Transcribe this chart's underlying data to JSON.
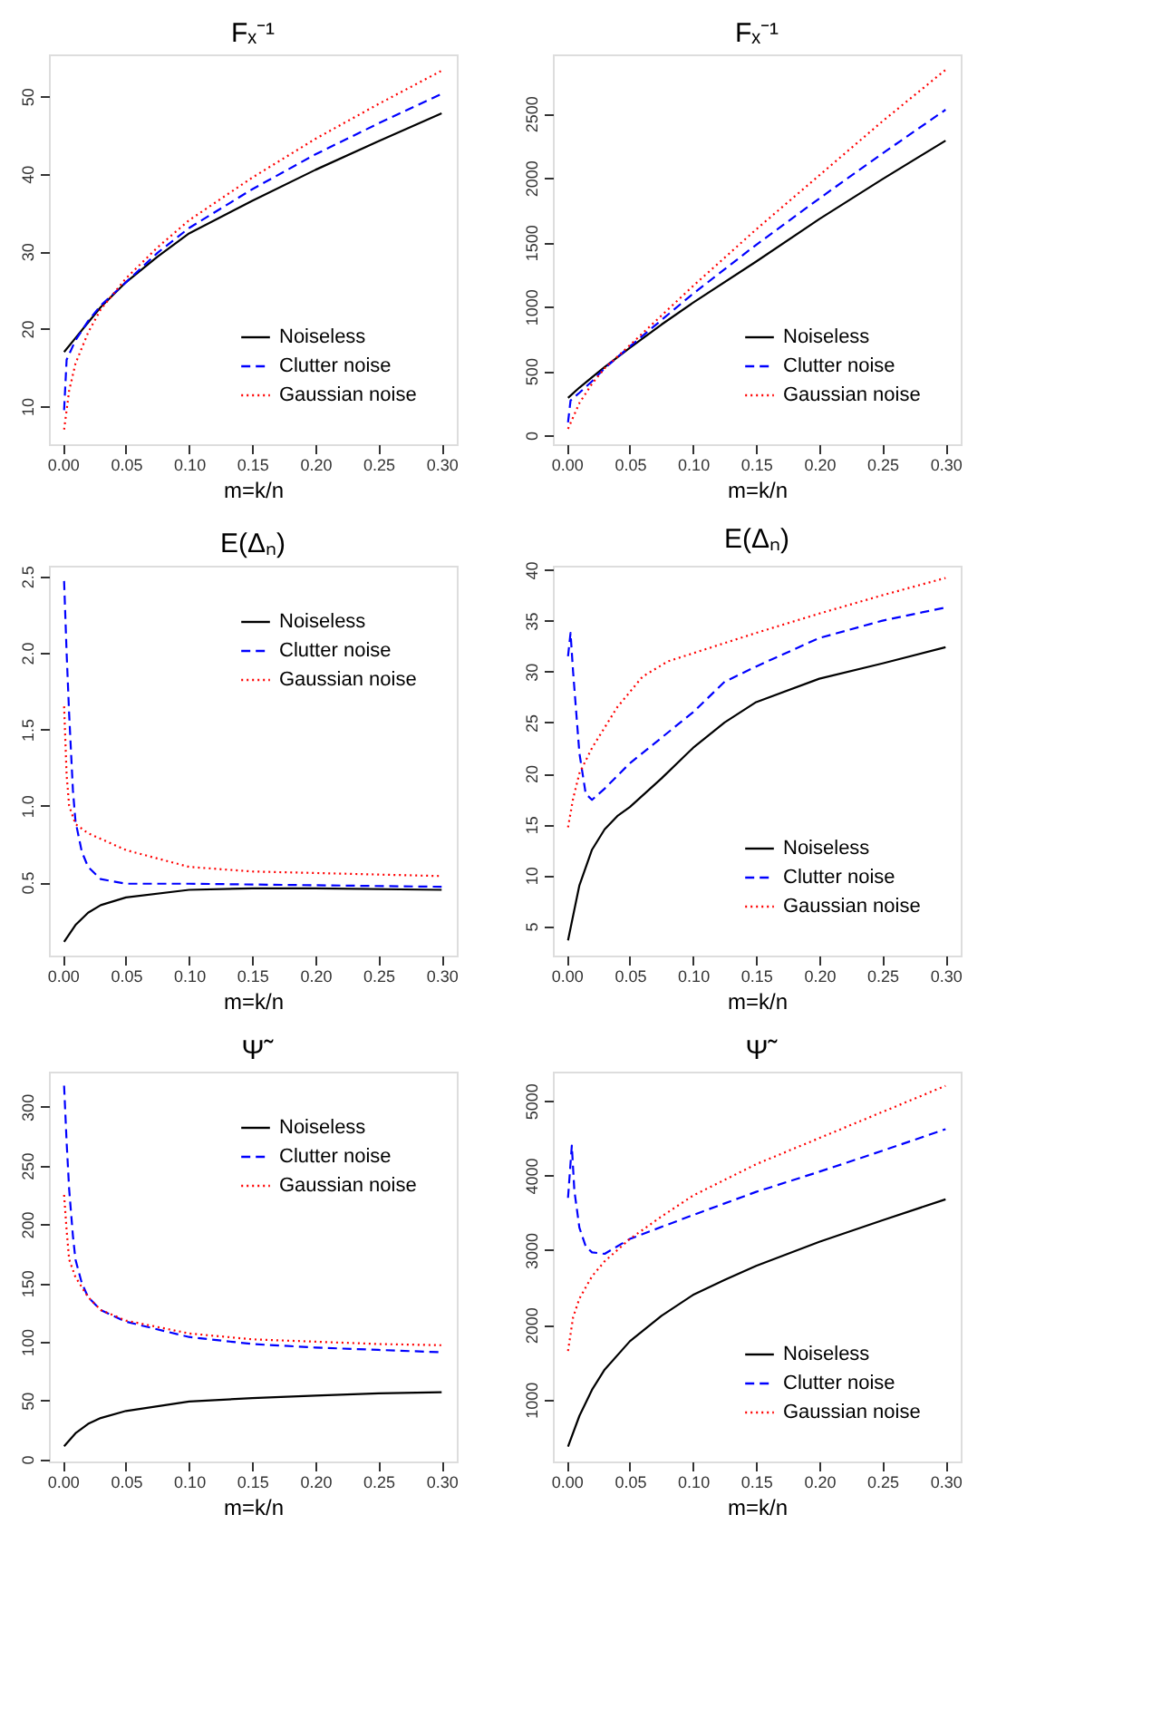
{
  "chart_data": [
    {
      "type": "line",
      "title": "Fₓ⁻¹",
      "xlabel": "m=k/n",
      "xlim": [
        -0.011,
        0.312
      ],
      "ylim": [
        5.1,
        55.4
      ],
      "xticks": [
        {
          "value": 0,
          "label": "0.00"
        },
        {
          "value": 0.05,
          "label": "0.05"
        },
        {
          "value": 0.1,
          "label": "0.10"
        },
        {
          "value": 0.15,
          "label": "0.15"
        },
        {
          "value": 0.2,
          "label": "0.20"
        },
        {
          "value": 0.25,
          "label": "0.25"
        },
        {
          "value": 0.3,
          "label": "0.30"
        }
      ],
      "yticks": [
        10,
        20,
        30,
        40,
        50
      ],
      "grid": false,
      "legend": "bottom right",
      "series": [
        {
          "name": "Noiseless",
          "color": "#000000",
          "line_style": "solid",
          "x": [
            0.001,
            0.01,
            0.02,
            0.03,
            0.05,
            0.075,
            0.1,
            0.15,
            0.2,
            0.25,
            0.3
          ],
          "values": [
            17,
            18.8,
            20.8,
            22.8,
            26,
            29.3,
            32.3,
            36.5,
            40.5,
            44.2,
            47.8
          ]
        },
        {
          "name": "Clutter noise",
          "color": "#0000ff",
          "line_style": "dashed",
          "x": [
            0.001,
            0.003,
            0.01,
            0.02,
            0.03,
            0.05,
            0.075,
            0.1,
            0.15,
            0.2,
            0.25,
            0.3
          ],
          "values": [
            9.5,
            16,
            18.5,
            21,
            23,
            26,
            29.8,
            33,
            38,
            42.5,
            46.5,
            50.3
          ]
        },
        {
          "name": "Gaussian noise",
          "color": "#ff0000",
          "line_style": "dotted",
          "x": [
            0.001,
            0.005,
            0.01,
            0.02,
            0.03,
            0.05,
            0.075,
            0.1,
            0.15,
            0.2,
            0.25,
            0.3
          ],
          "values": [
            7,
            12,
            15.5,
            19.5,
            22.5,
            26.5,
            30.5,
            34,
            39.5,
            44.5,
            49,
            53.3
          ]
        }
      ]
    },
    {
      "type": "line",
      "title": "Fₓ⁻¹",
      "xlabel": "m=k/n",
      "xlim": [
        -0.011,
        0.312
      ],
      "ylim": [
        -70,
        2960
      ],
      "xticks": [
        {
          "value": 0,
          "label": "0.00"
        },
        {
          "value": 0.05,
          "label": "0.05"
        },
        {
          "value": 0.1,
          "label": "0.10"
        },
        {
          "value": 0.15,
          "label": "0.15"
        },
        {
          "value": 0.2,
          "label": "0.20"
        },
        {
          "value": 0.25,
          "label": "0.25"
        },
        {
          "value": 0.3,
          "label": "0.30"
        }
      ],
      "yticks": [
        0,
        500,
        1000,
        1500,
        2000,
        2500
      ],
      "grid": false,
      "legend": "bottom right",
      "series": [
        {
          "name": "Noiseless",
          "color": "#000000",
          "line_style": "solid",
          "x": [
            0.001,
            0.01,
            0.02,
            0.03,
            0.05,
            0.075,
            0.1,
            0.15,
            0.2,
            0.25,
            0.3
          ],
          "values": [
            290,
            370,
            450,
            530,
            680,
            860,
            1030,
            1350,
            1680,
            1990,
            2290
          ]
        },
        {
          "name": "Clutter noise",
          "color": "#0000ff",
          "line_style": "dashed",
          "x": [
            0.001,
            0.003,
            0.01,
            0.02,
            0.03,
            0.05,
            0.1,
            0.15,
            0.2,
            0.25,
            0.3
          ],
          "values": [
            100,
            270,
            330,
            420,
            520,
            690,
            1100,
            1480,
            1840,
            2190,
            2530
          ]
        },
        {
          "name": "Gaussian noise",
          "color": "#ff0000",
          "line_style": "dotted",
          "x": [
            0.001,
            0.01,
            0.02,
            0.03,
            0.05,
            0.1,
            0.15,
            0.2,
            0.25,
            0.3
          ],
          "values": [
            50,
            250,
            400,
            520,
            700,
            1160,
            1600,
            2020,
            2440,
            2840
          ]
        }
      ]
    },
    {
      "type": "line",
      "title": "E(Δₙ)",
      "xlabel": "m=k/n",
      "xlim": [
        -0.011,
        0.312
      ],
      "ylim": [
        0.02,
        2.57
      ],
      "xticks": [
        {
          "value": 0,
          "label": "0.00"
        },
        {
          "value": 0.05,
          "label": "0.05"
        },
        {
          "value": 0.1,
          "label": "0.10"
        },
        {
          "value": 0.15,
          "label": "0.15"
        },
        {
          "value": 0.2,
          "label": "0.20"
        },
        {
          "value": 0.25,
          "label": "0.25"
        },
        {
          "value": 0.3,
          "label": "0.30"
        }
      ],
      "yticks": [
        0.5,
        {
          "value": 1,
          "label": "1.0"
        },
        1.5,
        {
          "value": 2,
          "label": "2.0"
        },
        2.5
      ],
      "grid": false,
      "legend": "top right",
      "series": [
        {
          "name": "Noiseless",
          "color": "#000000",
          "line_style": "solid",
          "x": [
            0.001,
            0.01,
            0.02,
            0.03,
            0.05,
            0.1,
            0.15,
            0.2,
            0.3
          ],
          "values": [
            0.11,
            0.22,
            0.3,
            0.35,
            0.4,
            0.45,
            0.46,
            0.46,
            0.45
          ]
        },
        {
          "name": "Clutter noise",
          "color": "#0000ff",
          "line_style": "dashed",
          "x": [
            0.001,
            0.003,
            0.005,
            0.008,
            0.01,
            0.015,
            0.02,
            0.03,
            0.05,
            0.1,
            0.2,
            0.3
          ],
          "values": [
            2.47,
            2.0,
            1.6,
            1.1,
            0.9,
            0.7,
            0.6,
            0.52,
            0.49,
            0.49,
            0.48,
            0.47
          ]
        },
        {
          "name": "Gaussian noise",
          "color": "#ff0000",
          "line_style": "dotted",
          "x": [
            0.001,
            0.003,
            0.005,
            0.01,
            0.02,
            0.05,
            0.1,
            0.15,
            0.2,
            0.25,
            0.3
          ],
          "values": [
            1.65,
            1.2,
            1.0,
            0.88,
            0.82,
            0.71,
            0.6,
            0.57,
            0.56,
            0.55,
            0.54
          ]
        }
      ]
    },
    {
      "type": "line",
      "title": "E(Δₙ)",
      "xlabel": "m=k/n",
      "xlim": [
        -0.011,
        0.312
      ],
      "ylim": [
        2.1,
        40.4
      ],
      "xticks": [
        {
          "value": 0,
          "label": "0.00"
        },
        {
          "value": 0.05,
          "label": "0.05"
        },
        {
          "value": 0.1,
          "label": "0.10"
        },
        {
          "value": 0.15,
          "label": "0.15"
        },
        {
          "value": 0.2,
          "label": "0.20"
        },
        {
          "value": 0.25,
          "label": "0.25"
        },
        {
          "value": 0.3,
          "label": "0.30"
        }
      ],
      "yticks": [
        5,
        10,
        15,
        20,
        25,
        30,
        35,
        40
      ],
      "grid": false,
      "legend": "bottom right",
      "series": [
        {
          "name": "Noiseless",
          "color": "#000000",
          "line_style": "solid",
          "x": [
            0.001,
            0.01,
            0.02,
            0.03,
            0.04,
            0.05,
            0.075,
            0.1,
            0.125,
            0.15,
            0.2,
            0.25,
            0.3
          ],
          "values": [
            3.6,
            9,
            12.5,
            14.5,
            15.8,
            16.7,
            19.5,
            22.5,
            25,
            27,
            29.3,
            30.8,
            32.4
          ]
        },
        {
          "name": "Clutter noise",
          "color": "#0000ff",
          "line_style": "dashed",
          "x": [
            0.001,
            0.003,
            0.005,
            0.01,
            0.015,
            0.02,
            0.03,
            0.05,
            0.075,
            0.1,
            0.125,
            0.15,
            0.2,
            0.25,
            0.3
          ],
          "values": [
            31.5,
            33.8,
            30,
            22,
            18,
            17.4,
            18.5,
            21,
            23.5,
            26,
            29,
            30.5,
            33.3,
            35,
            36.3
          ]
        },
        {
          "name": "Gaussian noise",
          "color": "#ff0000",
          "line_style": "dotted",
          "x": [
            0.001,
            0.005,
            0.01,
            0.02,
            0.04,
            0.06,
            0.08,
            0.1,
            0.15,
            0.2,
            0.25,
            0.3
          ],
          "values": [
            14.7,
            17.5,
            20,
            22.5,
            26.5,
            29.5,
            31,
            31.8,
            33.8,
            35.7,
            37.5,
            39.2
          ]
        }
      ]
    },
    {
      "type": "line",
      "title": "Ψ̃",
      "xlabel": "m=k/n",
      "xlim": [
        -0.011,
        0.312
      ],
      "ylim": [
        -2,
        330
      ],
      "xticks": [
        {
          "value": 0,
          "label": "0.00"
        },
        {
          "value": 0.05,
          "label": "0.05"
        },
        {
          "value": 0.1,
          "label": "0.10"
        },
        {
          "value": 0.15,
          "label": "0.15"
        },
        {
          "value": 0.2,
          "label": "0.20"
        },
        {
          "value": 0.25,
          "label": "0.25"
        },
        {
          "value": 0.3,
          "label": "0.30"
        }
      ],
      "yticks": [
        0,
        50,
        100,
        150,
        200,
        250,
        300
      ],
      "grid": false,
      "legend": "top right",
      "series": [
        {
          "name": "Noiseless",
          "color": "#000000",
          "line_style": "solid",
          "x": [
            0.001,
            0.01,
            0.02,
            0.03,
            0.05,
            0.1,
            0.15,
            0.2,
            0.25,
            0.3
          ],
          "values": [
            11,
            22,
            30,
            35,
            41,
            49,
            52,
            54,
            56,
            57
          ]
        },
        {
          "name": "Clutter noise",
          "color": "#0000ff",
          "line_style": "dashed",
          "x": [
            0.001,
            0.003,
            0.005,
            0.008,
            0.01,
            0.015,
            0.02,
            0.03,
            0.05,
            0.1,
            0.15,
            0.2,
            0.25,
            0.3
          ],
          "values": [
            318,
            270,
            230,
            190,
            170,
            150,
            138,
            127,
            117,
            104,
            98,
            95,
            93,
            91
          ]
        },
        {
          "name": "Gaussian noise",
          "color": "#ff0000",
          "line_style": "dotted",
          "x": [
            0.001,
            0.003,
            0.005,
            0.01,
            0.02,
            0.03,
            0.05,
            0.1,
            0.15,
            0.2,
            0.25,
            0.3
          ],
          "values": [
            225,
            195,
            170,
            155,
            138,
            127,
            118,
            107,
            102,
            100,
            98,
            97
          ]
        }
      ]
    },
    {
      "type": "line",
      "title": "Ψ̃",
      "xlabel": "m=k/n",
      "xlim": [
        -0.011,
        0.312
      ],
      "ylim": [
        170,
        5390
      ],
      "xticks": [
        {
          "value": 0,
          "label": "0.00"
        },
        {
          "value": 0.05,
          "label": "0.05"
        },
        {
          "value": 0.1,
          "label": "0.10"
        },
        {
          "value": 0.15,
          "label": "0.15"
        },
        {
          "value": 0.2,
          "label": "0.20"
        },
        {
          "value": 0.25,
          "label": "0.25"
        },
        {
          "value": 0.3,
          "label": "0.30"
        }
      ],
      "yticks": [
        1000,
        2000,
        3000,
        4000,
        5000
      ],
      "grid": false,
      "legend": "bottom right",
      "series": [
        {
          "name": "Noiseless",
          "color": "#000000",
          "line_style": "solid",
          "x": [
            0.001,
            0.01,
            0.02,
            0.03,
            0.05,
            0.075,
            0.1,
            0.125,
            0.15,
            0.2,
            0.25,
            0.3
          ],
          "values": [
            370,
            780,
            1130,
            1400,
            1780,
            2120,
            2400,
            2600,
            2790,
            3110,
            3400,
            3680
          ]
        },
        {
          "name": "Clutter noise",
          "color": "#0000ff",
          "line_style": "dashed",
          "x": [
            0.001,
            0.004,
            0.006,
            0.01,
            0.015,
            0.02,
            0.03,
            0.05,
            0.1,
            0.15,
            0.2,
            0.25,
            0.3
          ],
          "values": [
            3700,
            4400,
            3800,
            3300,
            3050,
            2970,
            2950,
            3150,
            3470,
            3780,
            4050,
            4330,
            4620
          ]
        },
        {
          "name": "Gaussian noise",
          "color": "#ff0000",
          "line_style": "dotted",
          "x": [
            0.001,
            0.005,
            0.01,
            0.02,
            0.03,
            0.05,
            0.075,
            0.1,
            0.15,
            0.2,
            0.25,
            0.3
          ],
          "values": [
            1650,
            2100,
            2350,
            2650,
            2850,
            3150,
            3450,
            3730,
            4150,
            4500,
            4850,
            5200
          ]
        }
      ]
    }
  ]
}
